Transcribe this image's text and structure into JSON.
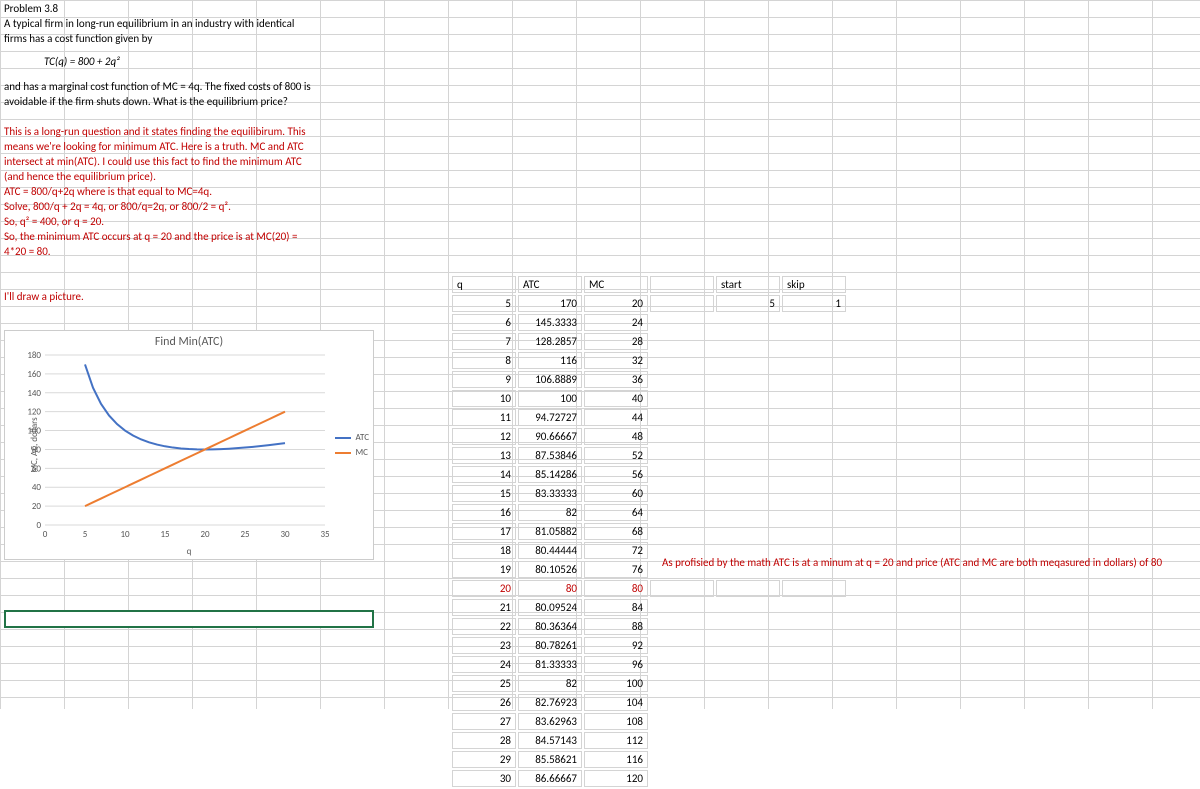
{
  "problem": {
    "title": "Problem 3.8",
    "line1": "A typical firm in long-run equilibrium in an industry with identical",
    "line2": "firms has a cost function given by",
    "formula": "TC(q) = 800 + 2q²",
    "line3": "and has a marginal cost function of MC = 4q. The fixed costs of 800 is",
    "line4": "avoidable if the firm shuts down. What is the equilibrium price?"
  },
  "solution": {
    "p1": "This is a long-run question and it states finding the equilibirum. This",
    "p2": "means we're looking for minimum ATC. Here is a truth. MC and ATC",
    "p3": "intersect at min(ATC). I could use this fact to find the minimum ATC",
    "p4": "(and hence the equilibrium price).",
    "p5": "ATC = 800/q+2q where is that equal to MC=4q.",
    "p6": "Solve, 800/q + 2q = 4q, or 800/q=2q, or 800/2 = q².",
    "p7": "So, q² = 400, or q = 20.",
    "p8": "So, the minimum ATC occurs at q = 20 and the price is at MC(20) =",
    "p9": "4*20 = 80.",
    "draw": "I'll draw a picture."
  },
  "chart": {
    "title": "Find Min(ATC)",
    "ylabel": "MC, AC, dollars",
    "xlabel": "q",
    "xmin": 0,
    "xmax": 35,
    "xtick_step": 5,
    "ymin": 0,
    "ymax": 180,
    "ytick_step": 20,
    "series": [
      {
        "name": "ATC",
        "color": "#4472c4",
        "x": [
          5,
          6,
          7,
          8,
          9,
          10,
          11,
          12,
          13,
          14,
          15,
          16,
          17,
          18,
          19,
          20,
          21,
          22,
          23,
          24,
          25,
          26,
          27,
          28,
          29,
          30
        ],
        "y": [
          170,
          145.3333,
          128.2857,
          116,
          106.8889,
          100,
          94.72727,
          90.66667,
          87.53846,
          85.14286,
          83.33333,
          82,
          81.05882,
          80.44444,
          80.10526,
          80,
          80.09524,
          80.36364,
          80.78261,
          81.33333,
          82,
          82.76923,
          83.62963,
          84.57143,
          85.58621,
          86.66667
        ]
      },
      {
        "name": "MC",
        "color": "#ed7d31",
        "x": [
          5,
          6,
          7,
          8,
          9,
          10,
          11,
          12,
          13,
          14,
          15,
          16,
          17,
          18,
          19,
          20,
          21,
          22,
          23,
          24,
          25,
          26,
          27,
          28,
          29,
          30
        ],
        "y": [
          20,
          24,
          28,
          32,
          36,
          40,
          44,
          48,
          52,
          56,
          60,
          64,
          68,
          72,
          76,
          80,
          84,
          88,
          92,
          96,
          100,
          104,
          108,
          112,
          116,
          120
        ]
      }
    ],
    "grid_color": "#d9d9d9",
    "tick_fontsize": 9,
    "tick_color": "#595959"
  },
  "table": {
    "headers": [
      "q",
      "ATC",
      "MC",
      "",
      "start",
      "skip"
    ],
    "start": 5,
    "skip": 1,
    "rows": [
      [
        5,
        170,
        20
      ],
      [
        6,
        145.3333,
        24
      ],
      [
        7,
        128.2857,
        28
      ],
      [
        8,
        116,
        32
      ],
      [
        9,
        106.8889,
        36
      ],
      [
        10,
        100,
        40
      ],
      [
        11,
        94.72727,
        44
      ],
      [
        12,
        90.66667,
        48
      ],
      [
        13,
        87.53846,
        52
      ],
      [
        14,
        85.14286,
        56
      ],
      [
        15,
        83.33333,
        60
      ],
      [
        16,
        82,
        64
      ],
      [
        17,
        81.05882,
        68
      ],
      [
        18,
        80.44444,
        72
      ],
      [
        19,
        80.10526,
        76
      ],
      [
        20,
        80,
        80
      ],
      [
        21,
        80.09524,
        84
      ],
      [
        22,
        80.36364,
        88
      ],
      [
        23,
        80.78261,
        92
      ],
      [
        24,
        81.33333,
        96
      ],
      [
        25,
        82,
        100
      ],
      [
        26,
        82.76923,
        104
      ],
      [
        27,
        83.62963,
        108
      ],
      [
        28,
        84.57143,
        112
      ],
      [
        29,
        85.58621,
        116
      ],
      [
        30,
        86.66667,
        120
      ]
    ],
    "highlight_row": 15
  },
  "annotation": "As profisied by the math ATC is at a minum at q = 20 and price (ATC and MC are both meqasured in dollars) of 80"
}
